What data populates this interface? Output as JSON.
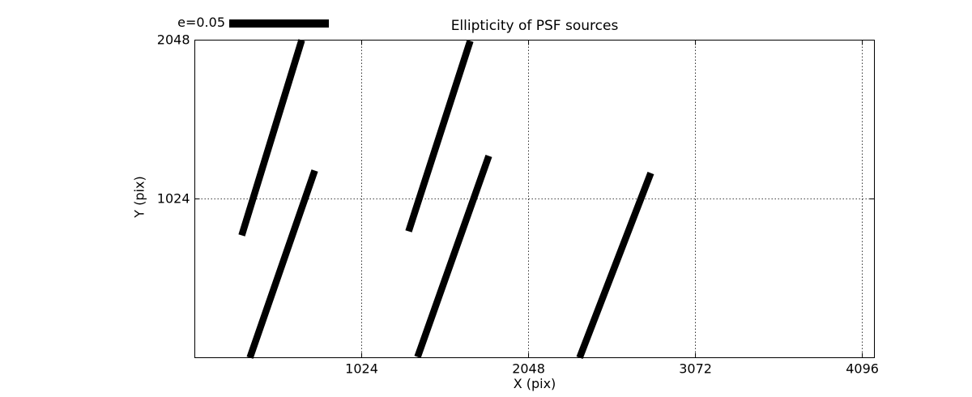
{
  "figure": {
    "background_color": "#ffffff",
    "foreground_color": "#000000"
  },
  "chart_data": {
    "type": "quiver",
    "title": "Ellipticity of PSF sources",
    "xlabel": "X (pix)",
    "ylabel": "Y (pix)",
    "xlim": [
      0,
      4170
    ],
    "ylim": [
      0,
      2048
    ],
    "x_ticks": [
      1024,
      2048,
      3072,
      4096
    ],
    "y_ticks": [
      1024,
      2048
    ],
    "grid": "dotted",
    "legend_label": "e=0.05",
    "legend_scale_e": 0.05,
    "legend_position": "upper-left-outside",
    "whisker_color": "#000000",
    "whiskers": [
      {
        "x1": 288,
        "y1": 789,
        "x2": 656,
        "y2": 2048
      },
      {
        "x1": 338,
        "y1": 0,
        "x2": 736,
        "y2": 1207
      },
      {
        "x1": 1312,
        "y1": 815,
        "x2": 1690,
        "y2": 2043
      },
      {
        "x1": 1367,
        "y1": 5,
        "x2": 1804,
        "y2": 1301
      },
      {
        "x1": 2361,
        "y1": 0,
        "x2": 2798,
        "y2": 1191
      }
    ]
  }
}
